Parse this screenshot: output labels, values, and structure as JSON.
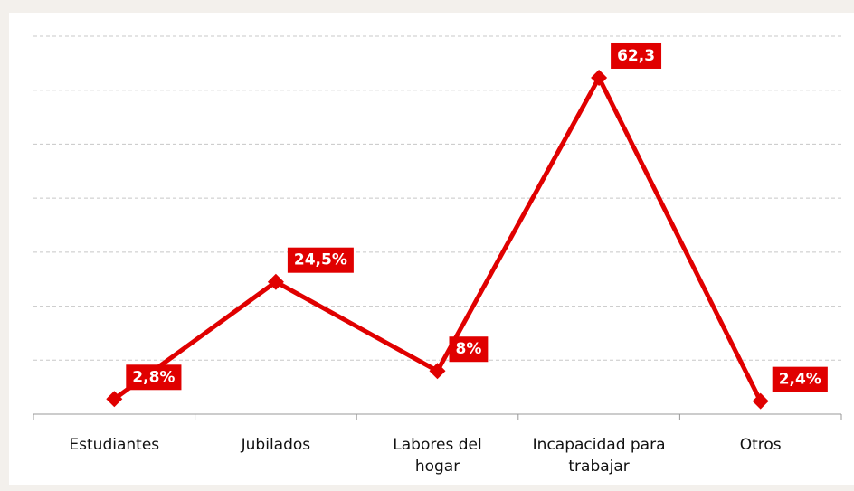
{
  "chart_data": {
    "type": "line",
    "categories": [
      "Estudiantes",
      "Jubilados",
      "Labores del hogar",
      "Incapacidad para trabajar",
      "Otros"
    ],
    "series": [
      {
        "color": "#e00000",
        "values": [
          2.8,
          24.5,
          8,
          62.3,
          2.4
        ],
        "value_labels": [
          "2,8%",
          "24,5%",
          "8%",
          "62,3",
          "2,4%"
        ]
      }
    ],
    "ylim": [
      0,
      70
    ],
    "yticks": [
      0,
      10,
      20,
      30,
      40,
      50,
      60,
      70
    ],
    "grid": true
  }
}
